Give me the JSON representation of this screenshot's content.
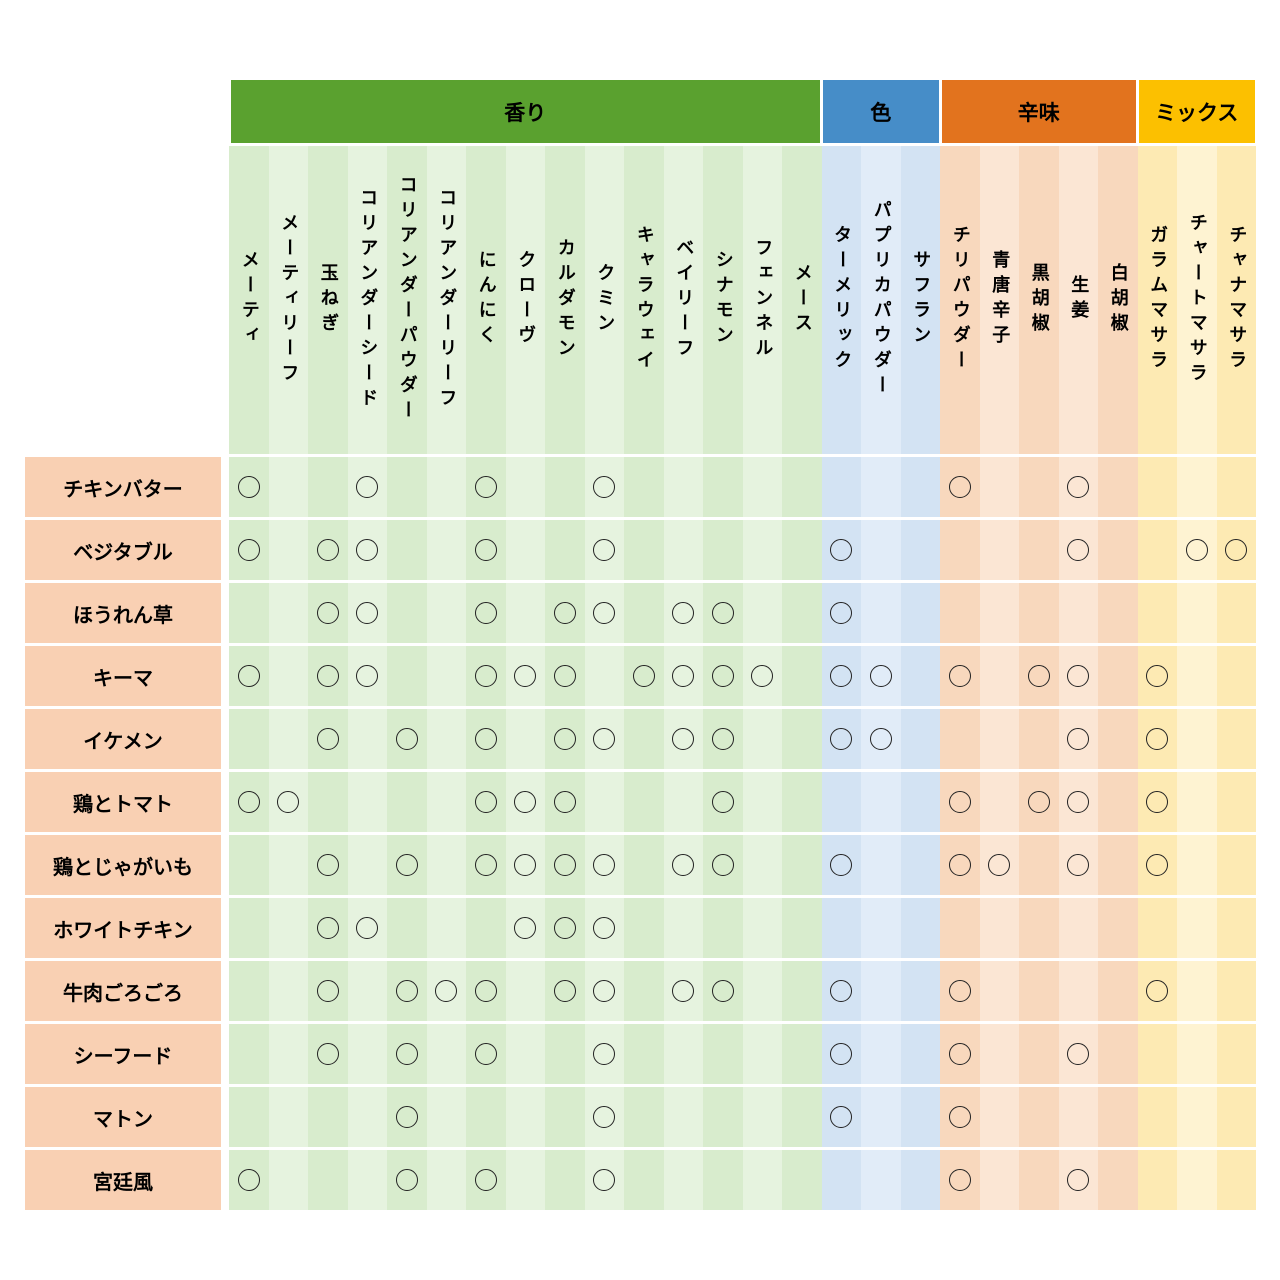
{
  "chart_data": {
    "type": "table",
    "description_groups": "column group headers",
    "groups": [
      {
        "label": "香り",
        "span": 15,
        "header_color": "#5aa12f",
        "stripe_colors": [
          "#d8eccd",
          "#e6f3df"
        ]
      },
      {
        "label": "色",
        "span": 3,
        "header_color": "#468dc8",
        "stripe_colors": [
          "#d3e3f3",
          "#e1ecf8"
        ]
      },
      {
        "label": "辛味",
        "span": 5,
        "header_color": "#e2731e",
        "stripe_colors": [
          "#f8d8bd",
          "#fbe6d4"
        ]
      },
      {
        "label": "ミックス",
        "span": 3,
        "header_color": "#fcc000",
        "stripe_colors": [
          "#fdeab3",
          "#fef3d2"
        ]
      }
    ],
    "columns": [
      "メーティ",
      "メーティリーフ",
      "玉ねぎ",
      "コリアンダーシード",
      "コリアンダーパウダー",
      "コリアンダーリーフ",
      "にんにく",
      "クローヴ",
      "カルダモン",
      "クミン",
      "キャラウェイ",
      "ベイリーフ",
      "シナモン",
      "フェンネル",
      "メース",
      "ターメリック",
      "パプリカパウダー",
      "サフラン",
      "チリパウダー",
      "青唐辛子",
      "黒胡椒",
      "生姜",
      "白胡椒",
      "ガラムマサラ",
      "チャートマサラ",
      "チャナマサラ"
    ],
    "mark_symbol": "○",
    "row_label_bg": "#f9d0b3",
    "rows": [
      {
        "label": "チキンバター",
        "marks": [
          0,
          3,
          6,
          9,
          18,
          21
        ]
      },
      {
        "label": "ベジタブル",
        "marks": [
          0,
          2,
          3,
          6,
          9,
          15,
          21,
          24,
          25
        ]
      },
      {
        "label": "ほうれん草",
        "marks": [
          2,
          3,
          6,
          8,
          9,
          11,
          12,
          15
        ]
      },
      {
        "label": "キーマ",
        "marks": [
          0,
          2,
          3,
          6,
          7,
          8,
          10,
          11,
          12,
          13,
          15,
          16,
          18,
          20,
          21,
          23
        ]
      },
      {
        "label": "イケメン",
        "marks": [
          2,
          4,
          6,
          8,
          9,
          11,
          12,
          15,
          16,
          21,
          23
        ]
      },
      {
        "label": "鶏とトマト",
        "marks": [
          0,
          1,
          6,
          7,
          8,
          12,
          18,
          20,
          21,
          23
        ]
      },
      {
        "label": "鶏とじゃがいも",
        "marks": [
          2,
          4,
          6,
          7,
          8,
          9,
          11,
          12,
          15,
          18,
          19,
          21,
          23
        ]
      },
      {
        "label": "ホワイトチキン",
        "marks": [
          2,
          3,
          7,
          8,
          9
        ]
      },
      {
        "label": "牛肉ごろごろ",
        "marks": [
          2,
          4,
          5,
          6,
          8,
          9,
          11,
          12,
          15,
          18,
          23
        ]
      },
      {
        "label": "シーフード",
        "marks": [
          2,
          4,
          6,
          9,
          15,
          18,
          21
        ]
      },
      {
        "label": "マトン",
        "marks": [
          4,
          9,
          15,
          18
        ]
      },
      {
        "label": "宮廷風",
        "marks": [
          0,
          4,
          6,
          9,
          18,
          21
        ]
      }
    ]
  }
}
